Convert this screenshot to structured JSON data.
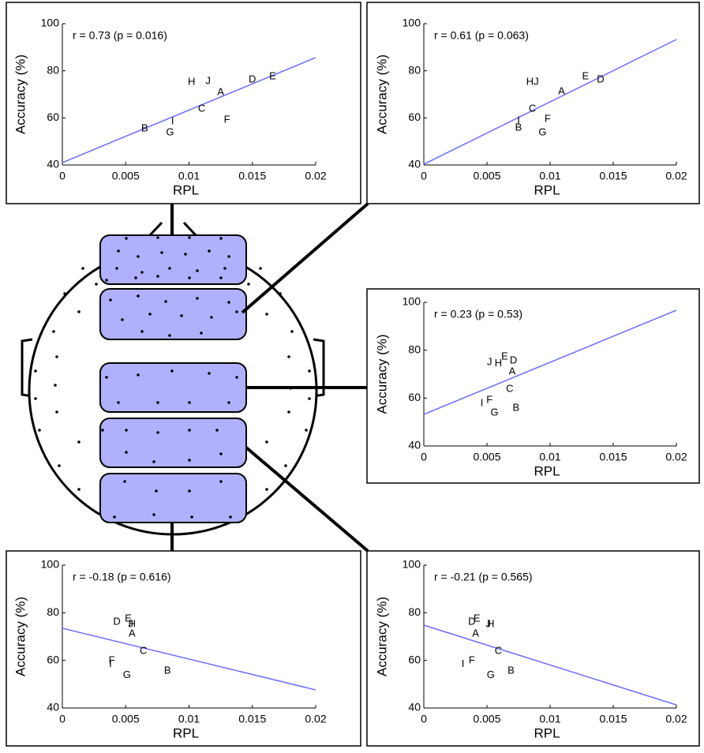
{
  "chart_data": [
    {
      "type": "scatter",
      "annotation": "r = 0.73 (p = 0.016)",
      "xlabel": "RPL",
      "ylabel": "Accuracy (%)",
      "xlim": [
        0,
        0.02
      ],
      "ylim": [
        40,
        100
      ],
      "xticks": [
        0,
        0.005,
        0.01,
        0.015,
        0.02
      ],
      "yticks": [
        40,
        60,
        80,
        100
      ],
      "labels": [
        "A",
        "B",
        "C",
        "D",
        "E",
        "F",
        "G",
        "H",
        "I",
        "J"
      ],
      "x": [
        0.0125,
        0.0065,
        0.011,
        0.015,
        0.0166,
        0.013,
        0.0085,
        0.0102,
        0.0087,
        0.0115
      ],
      "values": [
        70.8,
        55.4,
        63.8,
        76.2,
        77.5,
        59.1,
        53.7,
        75.2,
        58.4,
        75.5
      ],
      "fit": {
        "x": [
          0,
          0.02
        ],
        "values": [
          41,
          85.6
        ],
        "color": "#6b6bff"
      }
    },
    {
      "type": "scatter",
      "annotation": "r = 0.61 (p = 0.063)",
      "xlabel": "RPL",
      "ylabel": "Accuracy (%)",
      "xlim": [
        0,
        0.02
      ],
      "ylim": [
        40,
        100
      ],
      "xticks": [
        0,
        0.005,
        0.01,
        0.015,
        0.02
      ],
      "yticks": [
        40,
        60,
        80,
        100
      ],
      "labels": [
        "A",
        "B",
        "C",
        "D",
        "E",
        "F",
        "G",
        "H",
        "I",
        "J"
      ],
      "x": [
        0.0109,
        0.0075,
        0.0086,
        0.014,
        0.0128,
        0.0098,
        0.0094,
        0.0084,
        0.0075,
        0.0089
      ],
      "values": [
        71.2,
        55.8,
        63.8,
        76.2,
        77.5,
        59.4,
        53.7,
        75.2,
        58.8,
        75.2
      ],
      "fit": {
        "x": [
          0,
          0.02
        ],
        "values": [
          40.3,
          93.3
        ],
        "color": "#6b6bff"
      }
    },
    {
      "type": "scatter",
      "annotation": "r = 0.23 (p = 0.53)",
      "xlabel": "RPL",
      "ylabel": "Accuracy (%)",
      "xlim": [
        0,
        0.02
      ],
      "ylim": [
        40,
        100
      ],
      "xticks": [
        0,
        0.005,
        0.01,
        0.015,
        0.02
      ],
      "yticks": [
        40,
        60,
        80,
        100
      ],
      "labels": [
        "A",
        "B",
        "C",
        "D",
        "E",
        "F",
        "G",
        "H",
        "I",
        "J"
      ],
      "x": [
        0.007,
        0.0073,
        0.0068,
        0.0071,
        0.0064,
        0.0052,
        0.0056,
        0.0059,
        0.0046,
        0.0052
      ],
      "values": [
        71.0,
        55.8,
        63.7,
        75.6,
        77.2,
        59.1,
        53.8,
        74.5,
        57.8,
        74.9
      ],
      "fit": {
        "x": [
          0,
          0.02
        ],
        "values": [
          53.2,
          96.7
        ],
        "color": "#6b6bff"
      }
    },
    {
      "type": "scatter",
      "annotation": "r = -0.18 (p = 0.616)",
      "xlabel": "RPL",
      "ylabel": "Accuracy (%)",
      "xlim": [
        0,
        0.02
      ],
      "ylim": [
        40,
        100
      ],
      "xticks": [
        0,
        0.005,
        0.01,
        0.015,
        0.02
      ],
      "yticks": [
        40,
        60,
        80,
        100
      ],
      "labels": [
        "A",
        "B",
        "C",
        "D",
        "E",
        "F",
        "G",
        "H",
        "I",
        "J"
      ],
      "x": [
        0.0055,
        0.0083,
        0.0064,
        0.0043,
        0.0052,
        0.0039,
        0.0051,
        0.0055,
        0.0038,
        0.0054
      ],
      "values": [
        71.2,
        55.6,
        63.9,
        76.1,
        77.5,
        59.9,
        53.7,
        75.2,
        58.3,
        75.2
      ],
      "fit": {
        "x": [
          0,
          0.02
        ],
        "values": [
          73.5,
          47.6
        ],
        "color": "#6b6bff"
      }
    },
    {
      "type": "scatter",
      "annotation": "r = -0.21 (p = 0.565)",
      "xlabel": "RPL",
      "ylabel": "Accuracy (%)",
      "xlim": [
        0,
        0.02
      ],
      "ylim": [
        40,
        100
      ],
      "xticks": [
        0,
        0.005,
        0.01,
        0.015,
        0.02
      ],
      "yticks": [
        40,
        60,
        80,
        100
      ],
      "labels": [
        "A",
        "B",
        "C",
        "D",
        "E",
        "F",
        "G",
        "H",
        "I",
        "J"
      ],
      "x": [
        0.0041,
        0.0069,
        0.0059,
        0.0038,
        0.0042,
        0.0038,
        0.0053,
        0.0053,
        0.0031,
        0.0051
      ],
      "values": [
        71.2,
        55.6,
        63.9,
        76.1,
        77.5,
        59.9,
        53.7,
        75.2,
        58.3,
        75.2
      ],
      "fit": {
        "x": [
          0,
          0.02
        ],
        "values": [
          74.8,
          41.3
        ],
        "color": "#6b6bff"
      }
    }
  ]
}
